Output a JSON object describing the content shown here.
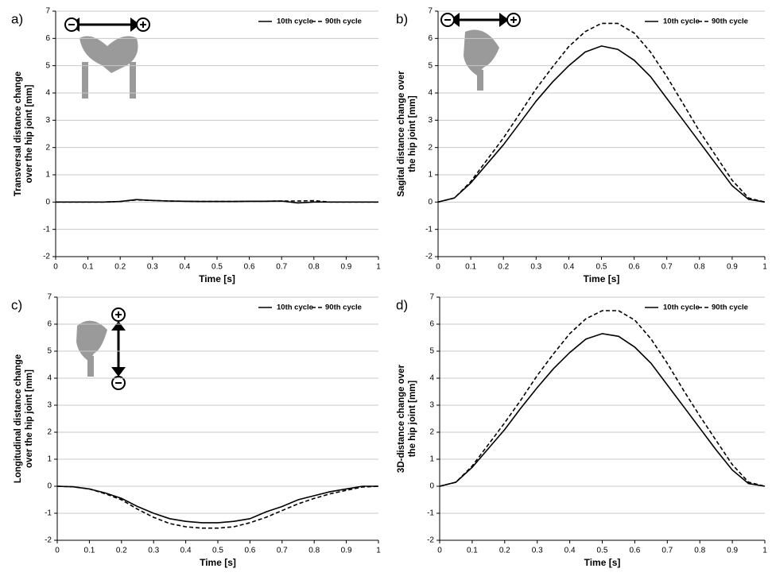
{
  "chart_data": [
    {
      "type": "line",
      "panel": "a)",
      "ylabel": [
        "Transversal distance change",
        "over the hip joint [mm]"
      ],
      "xlabel": "Time [s]",
      "x": [
        0,
        0.05,
        0.1,
        0.15,
        0.2,
        0.25,
        0.3,
        0.35,
        0.4,
        0.45,
        0.5,
        0.55,
        0.6,
        0.65,
        0.7,
        0.75,
        0.8,
        0.85,
        0.9,
        0.95,
        1
      ],
      "series": [
        {
          "name": "10th cycle",
          "color": "#000000",
          "linestyle": "solid",
          "values": [
            0,
            0,
            0,
            0,
            0.02,
            0.09,
            0.06,
            0.04,
            0.03,
            0.02,
            0.02,
            0.02,
            0.03,
            0.03,
            0.04,
            -0.03,
            0,
            0,
            0,
            0,
            0
          ]
        },
        {
          "name": "90th cycle",
          "color": "#000000",
          "linestyle": "dashed",
          "values": [
            0,
            0,
            0,
            0,
            0.02,
            0.08,
            0.06,
            0.04,
            0.03,
            0.02,
            0.02,
            0.02,
            0.03,
            0.03,
            0.04,
            0.04,
            0.05,
            0,
            0,
            0,
            0
          ]
        }
      ],
      "xlim": [
        0,
        1
      ],
      "ylim": [
        -2,
        7
      ],
      "xticks": [
        0,
        0.1,
        0.2,
        0.3,
        0.4,
        0.5,
        0.6,
        0.7,
        0.8,
        0.9,
        1
      ],
      "yticks": [
        -2,
        -1,
        0,
        1,
        2,
        3,
        4,
        5,
        6,
        7
      ],
      "grid": true,
      "legend": "top-right"
    },
    {
      "type": "line",
      "panel": "b)",
      "ylabel": [
        "Sagital distance change over",
        "the hip joint [mm]"
      ],
      "xlabel": "Time [s]",
      "x": [
        0,
        0.05,
        0.1,
        0.15,
        0.2,
        0.25,
        0.3,
        0.35,
        0.4,
        0.45,
        0.5,
        0.55,
        0.6,
        0.65,
        0.7,
        0.75,
        0.8,
        0.85,
        0.9,
        0.95,
        1
      ],
      "series": [
        {
          "name": "10th cycle",
          "color": "#000000",
          "linestyle": "solid",
          "values": [
            0,
            0.15,
            0.7,
            1.4,
            2.1,
            2.9,
            3.7,
            4.4,
            5.0,
            5.5,
            5.72,
            5.6,
            5.2,
            4.6,
            3.8,
            3.0,
            2.2,
            1.4,
            0.6,
            0.1,
            0
          ]
        },
        {
          "name": "90th cycle",
          "color": "#000000",
          "linestyle": "dashed",
          "values": [
            0,
            0.15,
            0.75,
            1.55,
            2.35,
            3.25,
            4.15,
            4.95,
            5.7,
            6.25,
            6.55,
            6.55,
            6.2,
            5.5,
            4.6,
            3.6,
            2.6,
            1.7,
            0.8,
            0.15,
            0
          ]
        }
      ],
      "xlim": [
        0,
        1
      ],
      "ylim": [
        -2,
        7
      ],
      "xticks": [
        0,
        0.1,
        0.2,
        0.3,
        0.4,
        0.5,
        0.6,
        0.7,
        0.8,
        0.9,
        1
      ],
      "yticks": [
        -2,
        -1,
        0,
        1,
        2,
        3,
        4,
        5,
        6,
        7
      ],
      "grid": true,
      "legend": "top-right"
    },
    {
      "type": "line",
      "panel": "c)",
      "ylabel": [
        "Longitudinal distance change",
        "over the hip joint [mm]"
      ],
      "xlabel": "Time [s]",
      "x": [
        0,
        0.05,
        0.1,
        0.15,
        0.2,
        0.25,
        0.3,
        0.35,
        0.4,
        0.45,
        0.5,
        0.55,
        0.6,
        0.65,
        0.7,
        0.75,
        0.8,
        0.85,
        0.9,
        0.95,
        1
      ],
      "series": [
        {
          "name": "10th cycle",
          "color": "#000000",
          "linestyle": "solid",
          "values": [
            0,
            -0.02,
            -0.1,
            -0.25,
            -0.45,
            -0.75,
            -1.0,
            -1.2,
            -1.3,
            -1.35,
            -1.35,
            -1.3,
            -1.2,
            -0.95,
            -0.75,
            -0.5,
            -0.35,
            -0.2,
            -0.1,
            0,
            0
          ]
        },
        {
          "name": "90th cycle",
          "color": "#000000",
          "linestyle": "dashed",
          "values": [
            0,
            -0.02,
            -0.1,
            -0.28,
            -0.5,
            -0.85,
            -1.15,
            -1.38,
            -1.5,
            -1.55,
            -1.55,
            -1.5,
            -1.35,
            -1.15,
            -0.9,
            -0.65,
            -0.45,
            -0.28,
            -0.15,
            -0.03,
            0
          ]
        }
      ],
      "xlim": [
        0,
        1
      ],
      "ylim": [
        -2,
        7
      ],
      "xticks": [
        0,
        0.1,
        0.2,
        0.3,
        0.4,
        0.5,
        0.6,
        0.7,
        0.8,
        0.9,
        1
      ],
      "yticks": [
        -2,
        -1,
        0,
        1,
        2,
        3,
        4,
        5,
        6,
        7
      ],
      "grid": true,
      "legend": "top-right"
    },
    {
      "type": "line",
      "panel": "d)",
      "ylabel": [
        "3D-distance change over",
        "the hip joint [mm]"
      ],
      "xlabel": "Time [s]",
      "x": [
        0,
        0.05,
        0.1,
        0.15,
        0.2,
        0.25,
        0.3,
        0.35,
        0.4,
        0.45,
        0.5,
        0.55,
        0.6,
        0.65,
        0.7,
        0.75,
        0.8,
        0.85,
        0.9,
        0.95,
        1
      ],
      "series": [
        {
          "name": "10th cycle",
          "color": "#000000",
          "linestyle": "solid",
          "values": [
            0,
            0.15,
            0.7,
            1.4,
            2.1,
            2.9,
            3.65,
            4.35,
            4.95,
            5.45,
            5.65,
            5.55,
            5.15,
            4.55,
            3.75,
            2.95,
            2.15,
            1.35,
            0.6,
            0.1,
            0
          ]
        },
        {
          "name": "90th cycle",
          "color": "#000000",
          "linestyle": "dashed",
          "values": [
            0,
            0.15,
            0.75,
            1.55,
            2.35,
            3.2,
            4.1,
            4.9,
            5.65,
            6.2,
            6.5,
            6.5,
            6.15,
            5.45,
            4.55,
            3.55,
            2.6,
            1.7,
            0.8,
            0.15,
            0
          ]
        }
      ],
      "xlim": [
        0,
        1
      ],
      "ylim": [
        -2,
        7
      ],
      "xticks": [
        0,
        0.1,
        0.2,
        0.3,
        0.4,
        0.5,
        0.6,
        0.7,
        0.8,
        0.9,
        1
      ],
      "yticks": [
        -2,
        -1,
        0,
        1,
        2,
        3,
        4,
        5,
        6,
        7
      ],
      "grid": true,
      "legend": "top-right"
    }
  ]
}
